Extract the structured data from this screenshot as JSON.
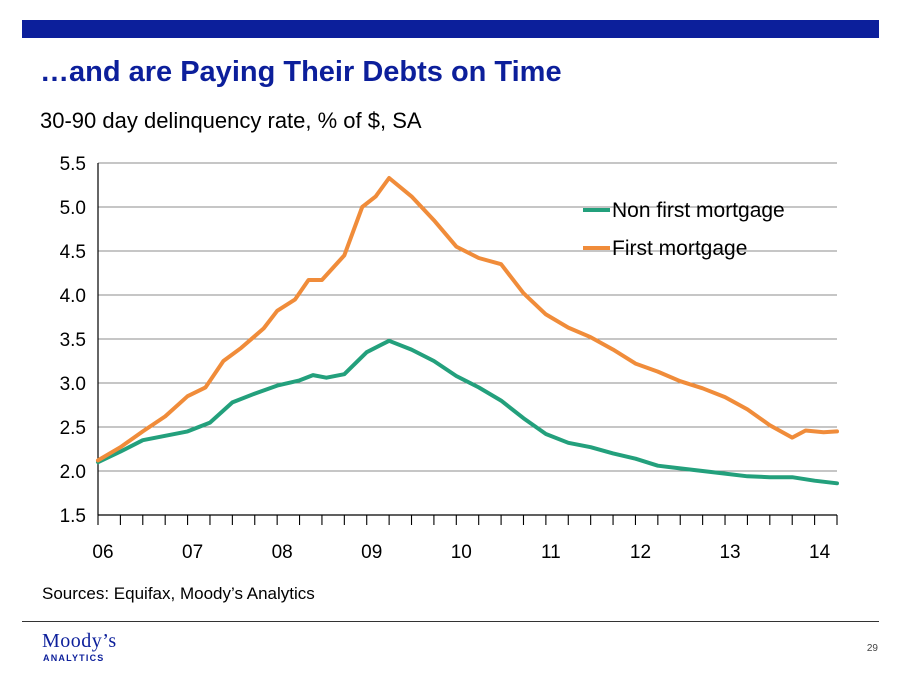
{
  "header": {
    "title": "…and are Paying Their Debts on Time",
    "subtitle": "30-90 day delinquency rate, % of $, SA"
  },
  "footer": {
    "sources": "Sources: Equifax, Moody’s Analytics",
    "logo": "Moody’s",
    "logo_sub": "ANALYTICS",
    "page_number": "29"
  },
  "colors": {
    "brand": "#0c1f9b",
    "non_first_mortgage": "#23a07c",
    "first_mortgage": "#f08c3a"
  },
  "chart_data": {
    "type": "line",
    "x_ticks": [
      "06",
      "07",
      "08",
      "09",
      "10",
      "11",
      "12",
      "13",
      "14"
    ],
    "x_tick_values": [
      2006,
      2007,
      2008,
      2009,
      2010,
      2011,
      2012,
      2013,
      2014
    ],
    "xlim": [
      2006,
      2014.25
    ],
    "ylim": [
      1.5,
      5.5
    ],
    "y_ticks": [
      "1.5",
      "2.0",
      "2.5",
      "3.0",
      "3.5",
      "4.0",
      "4.5",
      "5.0",
      "5.5"
    ],
    "y_tick_values": [
      1.5,
      2.0,
      2.5,
      3.0,
      3.5,
      4.0,
      4.5,
      5.0,
      5.5
    ],
    "grid": true,
    "legend_position": "top-right",
    "series": [
      {
        "name": "Non first mortgage",
        "color_key": "non_first_mortgage",
        "points": [
          [
            2006.0,
            2.1
          ],
          [
            2006.25,
            2.22
          ],
          [
            2006.5,
            2.35
          ],
          [
            2006.75,
            2.4
          ],
          [
            2007.0,
            2.45
          ],
          [
            2007.25,
            2.55
          ],
          [
            2007.5,
            2.78
          ],
          [
            2007.75,
            2.88
          ],
          [
            2008.0,
            2.97
          ],
          [
            2008.25,
            3.03
          ],
          [
            2008.4,
            3.09
          ],
          [
            2008.55,
            3.06
          ],
          [
            2008.75,
            3.1
          ],
          [
            2009.0,
            3.35
          ],
          [
            2009.25,
            3.48
          ],
          [
            2009.5,
            3.38
          ],
          [
            2009.75,
            3.25
          ],
          [
            2010.0,
            3.08
          ],
          [
            2010.25,
            2.95
          ],
          [
            2010.5,
            2.8
          ],
          [
            2010.75,
            2.6
          ],
          [
            2011.0,
            2.42
          ],
          [
            2011.25,
            2.32
          ],
          [
            2011.5,
            2.27
          ],
          [
            2011.75,
            2.2
          ],
          [
            2012.0,
            2.14
          ],
          [
            2012.25,
            2.06
          ],
          [
            2012.5,
            2.03
          ],
          [
            2012.75,
            2.0
          ],
          [
            2013.0,
            1.97
          ],
          [
            2013.25,
            1.94
          ],
          [
            2013.5,
            1.93
          ],
          [
            2013.75,
            1.93
          ],
          [
            2014.0,
            1.89
          ],
          [
            2014.25,
            1.86
          ]
        ]
      },
      {
        "name": "First mortgage",
        "color_key": "first_mortgage",
        "points": [
          [
            2006.0,
            2.12
          ],
          [
            2006.25,
            2.27
          ],
          [
            2006.5,
            2.45
          ],
          [
            2006.75,
            2.62
          ],
          [
            2007.0,
            2.85
          ],
          [
            2007.2,
            2.95
          ],
          [
            2007.4,
            3.25
          ],
          [
            2007.6,
            3.4
          ],
          [
            2007.85,
            3.62
          ],
          [
            2008.0,
            3.82
          ],
          [
            2008.2,
            3.95
          ],
          [
            2008.35,
            4.17
          ],
          [
            2008.5,
            4.17
          ],
          [
            2008.75,
            4.45
          ],
          [
            2008.95,
            5.0
          ],
          [
            2009.1,
            5.12
          ],
          [
            2009.25,
            5.33
          ],
          [
            2009.5,
            5.12
          ],
          [
            2009.75,
            4.85
          ],
          [
            2010.0,
            4.55
          ],
          [
            2010.25,
            4.42
          ],
          [
            2010.5,
            4.35
          ],
          [
            2010.75,
            4.02
          ],
          [
            2011.0,
            3.78
          ],
          [
            2011.25,
            3.63
          ],
          [
            2011.5,
            3.52
          ],
          [
            2011.75,
            3.38
          ],
          [
            2012.0,
            3.22
          ],
          [
            2012.25,
            3.13
          ],
          [
            2012.5,
            3.02
          ],
          [
            2012.75,
            2.94
          ],
          [
            2013.0,
            2.84
          ],
          [
            2013.25,
            2.7
          ],
          [
            2013.5,
            2.52
          ],
          [
            2013.75,
            2.38
          ],
          [
            2013.9,
            2.46
          ],
          [
            2014.1,
            2.44
          ],
          [
            2014.25,
            2.45
          ]
        ]
      }
    ]
  }
}
